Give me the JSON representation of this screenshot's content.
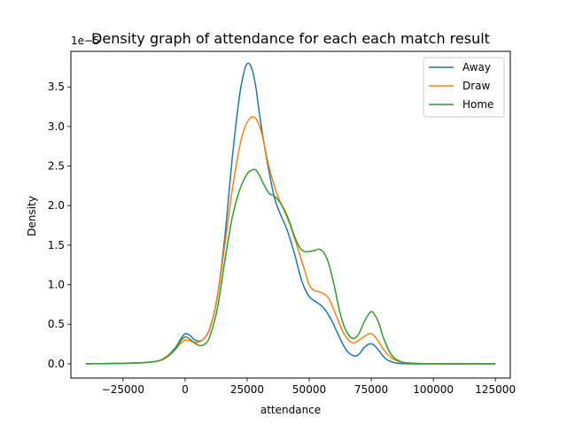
{
  "chart_data": {
    "type": "line",
    "title": "Density graph of attendance for each each match result",
    "xlabel": "attendance",
    "ylabel": "Density",
    "y_offset_label": "1e−5",
    "xlim": [
      -46000,
      131000
    ],
    "ylim": [
      -0.18,
      3.95
    ],
    "xticks": [
      -25000,
      0,
      25000,
      50000,
      75000,
      100000,
      125000
    ],
    "xtick_labels": [
      "−25000",
      "0",
      "25000",
      "50000",
      "75000",
      "100000",
      "125000"
    ],
    "yticks": [
      0.0,
      0.5,
      1.0,
      1.5,
      2.0,
      2.5,
      3.0,
      3.5
    ],
    "ytick_labels": [
      "0.0",
      "0.5",
      "1.0",
      "1.5",
      "2.0",
      "2.5",
      "3.0",
      "3.5"
    ],
    "grid": false,
    "legend_position": "top-right",
    "series": [
      {
        "name": "Away",
        "color": "#1f77b4",
        "x": [
          -40000,
          -20000,
          -12000,
          -8000,
          -4000,
          -2000,
          0,
          2000,
          4000,
          7000,
          10000,
          13000,
          16000,
          19000,
          22000,
          24000,
          25500,
          27000,
          28500,
          30000,
          32000,
          34000,
          36000,
          38000,
          41000,
          44000,
          47000,
          50000,
          53000,
          56000,
          59000,
          62000,
          65000,
          68000,
          70000,
          72000,
          74000,
          75000,
          76000,
          78000,
          80000,
          82000,
          85000,
          90000,
          100000,
          125000
        ],
        "y": [
          0,
          0.01,
          0.03,
          0.08,
          0.2,
          0.3,
          0.38,
          0.36,
          0.3,
          0.3,
          0.45,
          0.85,
          1.6,
          2.6,
          3.4,
          3.72,
          3.8,
          3.72,
          3.5,
          3.15,
          2.75,
          2.4,
          2.1,
          1.92,
          1.7,
          1.4,
          1.05,
          0.85,
          0.78,
          0.7,
          0.55,
          0.35,
          0.17,
          0.1,
          0.12,
          0.2,
          0.25,
          0.25,
          0.24,
          0.17,
          0.09,
          0.04,
          0.01,
          0,
          0,
          0
        ]
      },
      {
        "name": "Draw",
        "color": "#ff7f0e",
        "x": [
          -40000,
          -20000,
          -12000,
          -8000,
          -4000,
          -2000,
          0,
          2000,
          4000,
          7000,
          10000,
          13000,
          16000,
          19000,
          22000,
          24000,
          26000,
          27500,
          29000,
          31000,
          33000,
          35000,
          37000,
          39000,
          42000,
          45000,
          48000,
          50000,
          52000,
          55000,
          58000,
          61000,
          64000,
          67000,
          69000,
          72000,
          74000,
          75000,
          76000,
          78000,
          80000,
          83000,
          86000,
          90000,
          100000,
          125000
        ],
        "y": [
          0,
          0.01,
          0.03,
          0.08,
          0.18,
          0.25,
          0.3,
          0.29,
          0.27,
          0.3,
          0.45,
          0.85,
          1.5,
          2.2,
          2.75,
          2.98,
          3.1,
          3.12,
          3.08,
          2.9,
          2.6,
          2.35,
          2.15,
          2.0,
          1.78,
          1.5,
          1.2,
          1.0,
          0.93,
          0.9,
          0.82,
          0.6,
          0.38,
          0.27,
          0.28,
          0.34,
          0.38,
          0.38,
          0.36,
          0.28,
          0.18,
          0.08,
          0.03,
          0.01,
          0,
          0
        ]
      },
      {
        "name": "Home",
        "color": "#2ca02c",
        "x": [
          -40000,
          -20000,
          -12000,
          -8000,
          -4000,
          -2000,
          0,
          2000,
          4000,
          6000,
          8000,
          10000,
          13000,
          16000,
          19000,
          22000,
          25000,
          27000,
          28500,
          30000,
          32000,
          34000,
          36000,
          38000,
          40000,
          42000,
          44000,
          46000,
          48000,
          50000,
          52000,
          54000,
          56000,
          58000,
          60000,
          62000,
          64000,
          66000,
          68000,
          70000,
          72000,
          74000,
          75000,
          76000,
          78000,
          80000,
          83000,
          86000,
          90000,
          100000,
          125000
        ],
        "y": [
          0,
          0.01,
          0.03,
          0.07,
          0.18,
          0.28,
          0.34,
          0.31,
          0.26,
          0.23,
          0.25,
          0.35,
          0.7,
          1.3,
          1.85,
          2.2,
          2.4,
          2.45,
          2.45,
          2.38,
          2.25,
          2.15,
          2.12,
          2.05,
          1.95,
          1.8,
          1.62,
          1.48,
          1.42,
          1.42,
          1.43,
          1.45,
          1.4,
          1.25,
          1.0,
          0.7,
          0.48,
          0.36,
          0.32,
          0.38,
          0.52,
          0.63,
          0.66,
          0.64,
          0.52,
          0.32,
          0.12,
          0.04,
          0.01,
          0,
          0
        ]
      }
    ]
  }
}
